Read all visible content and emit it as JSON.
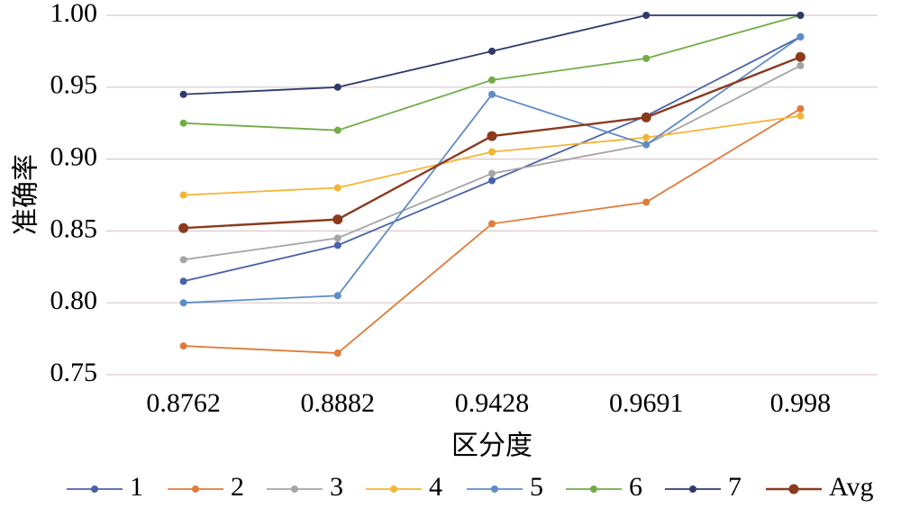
{
  "chart_data": {
    "type": "line",
    "title": "",
    "xlabel": "区分度",
    "ylabel": "准确率",
    "categories": [
      "0.8762",
      "0.8882",
      "0.9428",
      "0.9691",
      "0.998"
    ],
    "ylim": [
      0.75,
      1.0
    ],
    "yticks": [
      "0.75",
      "0.80",
      "0.85",
      "0.90",
      "0.95",
      "1.00"
    ],
    "grid": "horizontal",
    "legend_position": "bottom",
    "series": [
      {
        "name": "1",
        "color": "#4a62a8",
        "values": [
          0.815,
          0.84,
          0.885,
          0.93,
          0.985
        ]
      },
      {
        "name": "2",
        "color": "#e07b39",
        "values": [
          0.77,
          0.765,
          0.855,
          0.87,
          0.935
        ]
      },
      {
        "name": "3",
        "color": "#a5a5a5",
        "values": [
          0.83,
          0.845,
          0.89,
          0.91,
          0.965
        ]
      },
      {
        "name": "4",
        "color": "#f5b435",
        "values": [
          0.875,
          0.88,
          0.905,
          0.915,
          0.93
        ]
      },
      {
        "name": "5",
        "color": "#5e8cc6",
        "values": [
          0.8,
          0.805,
          0.945,
          0.91,
          0.985
        ]
      },
      {
        "name": "6",
        "color": "#70ad47",
        "values": [
          0.925,
          0.92,
          0.955,
          0.97,
          1.0
        ]
      },
      {
        "name": "7",
        "color": "#2f3a6b",
        "values": [
          0.945,
          0.95,
          0.975,
          1.0,
          1.0
        ]
      },
      {
        "name": "Avg",
        "color": "#8b3a1e",
        "values": [
          0.852,
          0.858,
          0.916,
          0.929,
          0.971
        ]
      }
    ]
  }
}
